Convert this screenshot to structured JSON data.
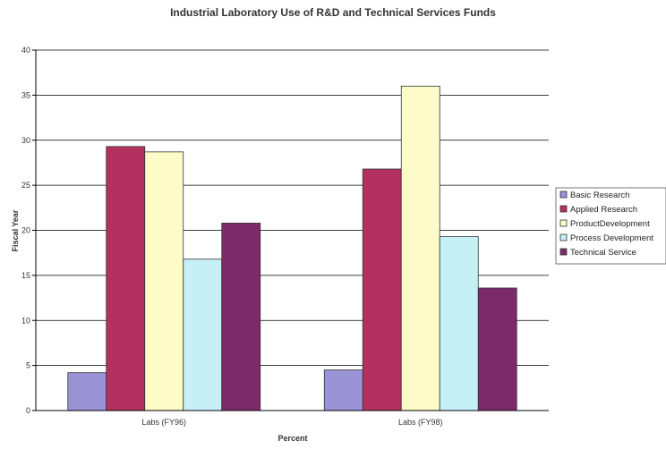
{
  "chart_data": {
    "type": "bar",
    "title": "Industrial Laboratory Use of R&D and Technical Services Funds",
    "xlabel": "Percent",
    "ylabel": "Fiscal Year",
    "categories": [
      "Labs (FY96)",
      "Labs (FY98)"
    ],
    "ylim": [
      0,
      40
    ],
    "yticks": [
      0,
      5,
      10,
      15,
      20,
      25,
      30,
      35,
      40
    ],
    "grid": true,
    "legend_position": "right",
    "series": [
      {
        "name": "Basic Research",
        "values": [
          4.2,
          4.5
        ],
        "color": "#9a93d6"
      },
      {
        "name": "Applied Research",
        "values": [
          29.3,
          26.8
        ],
        "color": "#b2315e"
      },
      {
        "name": "ProductDevelopment",
        "values": [
          28.7,
          36.0
        ],
        "color": "#fdfcc8"
      },
      {
        "name": "Process Development",
        "values": [
          16.8,
          19.3
        ],
        "color": "#c6eff6"
      },
      {
        "name": "Technical Service",
        "values": [
          20.8,
          13.6
        ],
        "color": "#7d2a6a"
      }
    ]
  }
}
